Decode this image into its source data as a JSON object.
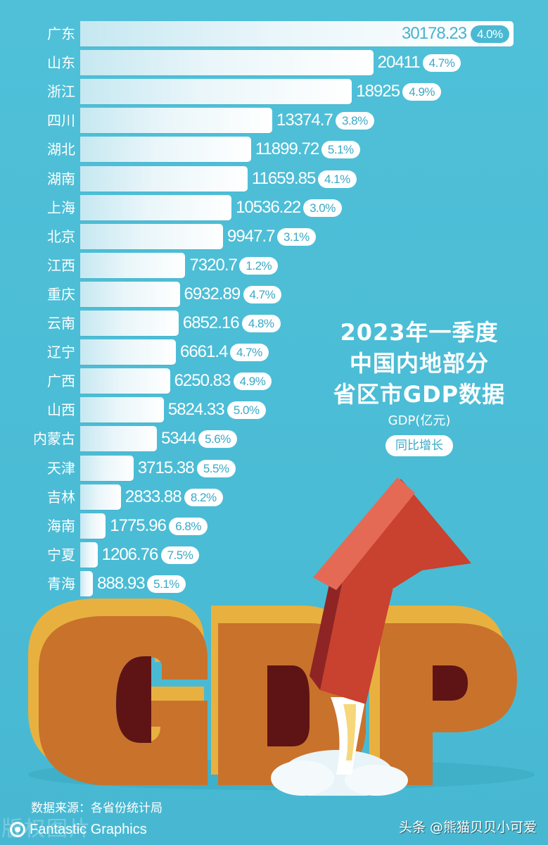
{
  "title": {
    "lines": [
      "2023年一季度",
      "中国内地部分",
      "省区市GDP数据"
    ],
    "unit_label": "GDP(亿元)",
    "growth_label": "同比增长"
  },
  "footer": {
    "source": "数据来源：各省份统计局",
    "brand": "Fantastic Graphics",
    "faint_watermark": "版权图片",
    "watermark": "头条 @熊猫贝贝小可爱"
  },
  "art": {
    "letters": "GDP",
    "icon": "rocket-arrow"
  },
  "colors": {
    "background": "#4dbdd6",
    "bar_start": "#c6e8f1",
    "bar_end": "#ffffff",
    "pill_bg": "#ffffff",
    "pill_text": "#3aa9c6",
    "letters_top": "#e8b13f",
    "letters_face": "#c9722c",
    "arrow": "#c9412f"
  },
  "rows": [
    {
      "label": "广东",
      "value": "30178.23",
      "growth": "4.0%"
    },
    {
      "label": "山东",
      "value": "20411",
      "growth": "4.7%"
    },
    {
      "label": "浙江",
      "value": "18925",
      "growth": "4.9%"
    },
    {
      "label": "四川",
      "value": "13374.7",
      "growth": "3.8%"
    },
    {
      "label": "湖北",
      "value": "11899.72",
      "growth": "5.1%"
    },
    {
      "label": "湖南",
      "value": "11659.85",
      "growth": "4.1%"
    },
    {
      "label": "上海",
      "value": "10536.22",
      "growth": "3.0%"
    },
    {
      "label": "北京",
      "value": "9947.7",
      "growth": "3.1%"
    },
    {
      "label": "江西",
      "value": "7320.7",
      "growth": "1.2%"
    },
    {
      "label": "重庆",
      "value": "6932.89",
      "growth": "4.7%"
    },
    {
      "label": "云南",
      "value": "6852.16",
      "growth": "4.8%"
    },
    {
      "label": "辽宁",
      "value": "6661.4",
      "growth": "4.7%"
    },
    {
      "label": "广西",
      "value": "6250.83",
      "growth": "4.9%"
    },
    {
      "label": "山西",
      "value": "5824.33",
      "growth": "5.0%"
    },
    {
      "label": "内蒙古",
      "value": "5344",
      "growth": "5.6%"
    },
    {
      "label": "天津",
      "value": "3715.38",
      "growth": "5.5%"
    },
    {
      "label": "吉林",
      "value": "2833.88",
      "growth": "8.2%"
    },
    {
      "label": "海南",
      "value": "1775.96",
      "growth": "6.8%"
    },
    {
      "label": "宁夏",
      "value": "1206.76",
      "growth": "7.5%"
    },
    {
      "label": "青海",
      "value": "888.93",
      "growth": "5.1%"
    }
  ],
  "chart_data": {
    "type": "bar",
    "orientation": "horizontal",
    "title": "2023年一季度中国内地部分省区市GDP数据",
    "xlabel": "GDP(亿元)",
    "ylabel": "",
    "legend": [
      "GDP(亿元)",
      "同比增长"
    ],
    "legend_position": "right-middle",
    "grid": false,
    "categories": [
      "广东",
      "山东",
      "浙江",
      "四川",
      "湖北",
      "湖南",
      "上海",
      "北京",
      "江西",
      "重庆",
      "云南",
      "辽宁",
      "广西",
      "山西",
      "内蒙古",
      "天津",
      "吉林",
      "海南",
      "宁夏",
      "青海"
    ],
    "series": [
      {
        "name": "GDP(亿元)",
        "values": [
          30178.23,
          20411,
          18925,
          13374.7,
          11899.72,
          11659.85,
          10536.22,
          9947.7,
          7320.7,
          6932.89,
          6852.16,
          6661.4,
          6250.83,
          5824.33,
          5344,
          3715.38,
          2833.88,
          1775.96,
          1206.76,
          888.93
        ]
      },
      {
        "name": "同比增长(%)",
        "values": [
          4.0,
          4.7,
          4.9,
          3.8,
          5.1,
          4.1,
          3.0,
          3.1,
          1.2,
          4.7,
          4.8,
          4.7,
          4.9,
          5.0,
          5.6,
          5.5,
          8.2,
          6.8,
          7.5,
          5.1
        ]
      }
    ],
    "source": "数据来源：各省份统计局"
  }
}
